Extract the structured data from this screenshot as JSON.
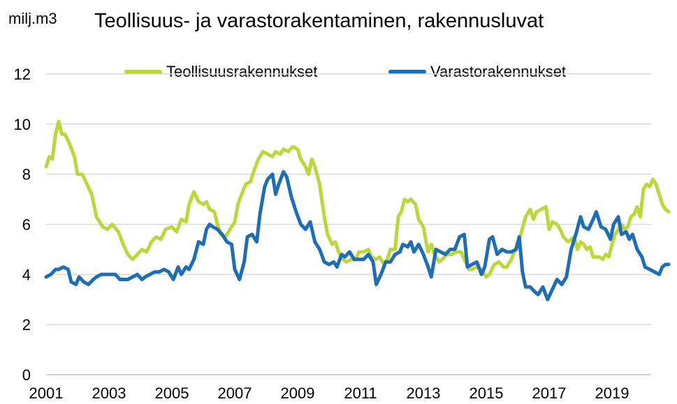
{
  "chart_data": {
    "type": "line",
    "title": "Teollisuus- ja varastorakentaminen, rakennusluvat",
    "ylabel": "milj.m3",
    "ylim": [
      0,
      12
    ],
    "yticks": [
      0,
      2,
      4,
      6,
      8,
      10,
      12
    ],
    "xlim": [
      2001,
      2020.4
    ],
    "xticks": [
      2001,
      2003,
      2005,
      2007,
      2009,
      2011,
      2013,
      2015,
      2017,
      2019
    ],
    "grid": true,
    "legend_position": "top",
    "series": [
      {
        "name": "Teollisuusrakennukset",
        "color": "#bcd63e",
        "points": [
          [
            2001.0,
            8.3
          ],
          [
            2001.1,
            8.7
          ],
          [
            2001.2,
            8.6
          ],
          [
            2001.3,
            9.6
          ],
          [
            2001.4,
            10.1
          ],
          [
            2001.5,
            9.6
          ],
          [
            2001.6,
            9.6
          ],
          [
            2001.75,
            9.2
          ],
          [
            2001.9,
            8.7
          ],
          [
            2002.0,
            8.0
          ],
          [
            2002.15,
            8.0
          ],
          [
            2002.3,
            7.6
          ],
          [
            2002.45,
            7.2
          ],
          [
            2002.6,
            6.3
          ],
          [
            2002.8,
            5.9
          ],
          [
            2002.95,
            5.8
          ],
          [
            2003.1,
            6.0
          ],
          [
            2003.3,
            5.7
          ],
          [
            2003.45,
            5.2
          ],
          [
            2003.6,
            4.8
          ],
          [
            2003.75,
            4.6
          ],
          [
            2003.9,
            4.8
          ],
          [
            2004.05,
            5.0
          ],
          [
            2004.2,
            4.9
          ],
          [
            2004.35,
            5.3
          ],
          [
            2004.5,
            5.5
          ],
          [
            2004.65,
            5.4
          ],
          [
            2004.8,
            5.8
          ],
          [
            2005.0,
            5.9
          ],
          [
            2005.15,
            5.7
          ],
          [
            2005.3,
            6.2
          ],
          [
            2005.45,
            6.1
          ],
          [
            2005.55,
            6.8
          ],
          [
            2005.7,
            7.3
          ],
          [
            2005.85,
            6.9
          ],
          [
            2006.0,
            6.8
          ],
          [
            2006.1,
            6.9
          ],
          [
            2006.2,
            6.6
          ],
          [
            2006.35,
            6.5
          ],
          [
            2006.45,
            6.0
          ],
          [
            2006.55,
            5.6
          ],
          [
            2006.7,
            5.5
          ],
          [
            2006.85,
            5.8
          ],
          [
            2007.0,
            6.1
          ],
          [
            2007.1,
            6.8
          ],
          [
            2007.25,
            7.3
          ],
          [
            2007.35,
            7.6
          ],
          [
            2007.5,
            7.7
          ],
          [
            2007.6,
            8.1
          ],
          [
            2007.75,
            8.6
          ],
          [
            2007.9,
            8.9
          ],
          [
            2008.05,
            8.8
          ],
          [
            2008.2,
            8.7
          ],
          [
            2008.3,
            8.9
          ],
          [
            2008.45,
            8.8
          ],
          [
            2008.55,
            9.0
          ],
          [
            2008.7,
            8.9
          ],
          [
            2008.85,
            9.1
          ],
          [
            2009.0,
            9.0
          ],
          [
            2009.1,
            8.6
          ],
          [
            2009.25,
            8.3
          ],
          [
            2009.35,
            8.0
          ],
          [
            2009.45,
            8.6
          ],
          [
            2009.55,
            8.3
          ],
          [
            2009.7,
            7.6
          ],
          [
            2009.85,
            6.3
          ],
          [
            2009.95,
            5.6
          ],
          [
            2010.1,
            5.2
          ],
          [
            2010.2,
            5.3
          ],
          [
            2010.3,
            4.9
          ],
          [
            2010.45,
            4.6
          ],
          [
            2010.55,
            4.5
          ],
          [
            2010.7,
            4.6
          ],
          [
            2010.85,
            4.6
          ],
          [
            2010.95,
            4.9
          ],
          [
            2011.1,
            4.9
          ],
          [
            2011.25,
            5.0
          ],
          [
            2011.35,
            4.7
          ],
          [
            2011.5,
            4.6
          ],
          [
            2011.6,
            4.7
          ],
          [
            2011.75,
            4.4
          ],
          [
            2011.85,
            4.6
          ],
          [
            2011.95,
            5.0
          ],
          [
            2012.1,
            5.0
          ],
          [
            2012.2,
            6.3
          ],
          [
            2012.3,
            6.5
          ],
          [
            2012.4,
            7.0
          ],
          [
            2012.5,
            6.9
          ],
          [
            2012.6,
            7.0
          ],
          [
            2012.75,
            6.8
          ],
          [
            2012.85,
            6.2
          ],
          [
            2013.0,
            5.9
          ],
          [
            2013.1,
            5.2
          ],
          [
            2013.15,
            4.9
          ],
          [
            2013.25,
            5.2
          ],
          [
            2013.35,
            4.8
          ],
          [
            2013.5,
            4.5
          ],
          [
            2013.6,
            4.6
          ],
          [
            2013.75,
            4.8
          ],
          [
            2013.9,
            4.8
          ],
          [
            2014.05,
            4.9
          ],
          [
            2014.2,
            4.9
          ],
          [
            2014.3,
            4.6
          ],
          [
            2014.45,
            4.2
          ],
          [
            2014.55,
            4.2
          ],
          [
            2014.7,
            4.3
          ],
          [
            2014.85,
            4.2
          ],
          [
            2015.0,
            3.9
          ],
          [
            2015.1,
            4.0
          ],
          [
            2015.25,
            4.4
          ],
          [
            2015.4,
            4.5
          ],
          [
            2015.55,
            4.3
          ],
          [
            2015.65,
            4.3
          ],
          [
            2015.8,
            4.6
          ],
          [
            2015.95,
            5.1
          ],
          [
            2016.1,
            5.6
          ],
          [
            2016.25,
            6.3
          ],
          [
            2016.4,
            6.6
          ],
          [
            2016.5,
            6.2
          ],
          [
            2016.6,
            6.5
          ],
          [
            2016.75,
            6.6
          ],
          [
            2016.9,
            6.7
          ],
          [
            2017.0,
            5.8
          ],
          [
            2017.1,
            6.1
          ],
          [
            2017.25,
            6.0
          ],
          [
            2017.35,
            5.8
          ],
          [
            2017.45,
            5.5
          ],
          [
            2017.6,
            5.3
          ],
          [
            2017.7,
            5.4
          ],
          [
            2017.8,
            5.5
          ],
          [
            2017.9,
            5.0
          ],
          [
            2018.0,
            5.3
          ],
          [
            2018.1,
            5.2
          ],
          [
            2018.2,
            5.0
          ],
          [
            2018.3,
            5.1
          ],
          [
            2018.4,
            4.7
          ],
          [
            2018.5,
            4.7
          ],
          [
            2018.6,
            4.7
          ],
          [
            2018.7,
            4.6
          ],
          [
            2018.8,
            4.8
          ],
          [
            2018.9,
            4.7
          ],
          [
            2019.0,
            5.2
          ],
          [
            2019.1,
            5.6
          ],
          [
            2019.2,
            5.8
          ],
          [
            2019.3,
            6.0
          ],
          [
            2019.4,
            5.8
          ],
          [
            2019.5,
            5.9
          ],
          [
            2019.6,
            6.3
          ],
          [
            2019.7,
            6.4
          ],
          [
            2019.8,
            6.7
          ],
          [
            2019.9,
            6.3
          ],
          [
            2020.0,
            7.4
          ],
          [
            2020.1,
            7.6
          ],
          [
            2020.2,
            7.5
          ],
          [
            2020.3,
            7.8
          ],
          [
            2020.4,
            7.6
          ],
          [
            2020.5,
            7.2
          ],
          [
            2020.6,
            6.8
          ],
          [
            2020.7,
            6.6
          ],
          [
            2020.8,
            6.5
          ]
        ]
      },
      {
        "name": "Varastorakennukset",
        "color": "#1f6eb4",
        "points": [
          [
            2001.0,
            3.9
          ],
          [
            2001.15,
            4.0
          ],
          [
            2001.3,
            4.2
          ],
          [
            2001.4,
            4.2
          ],
          [
            2001.55,
            4.3
          ],
          [
            2001.7,
            4.2
          ],
          [
            2001.8,
            3.7
          ],
          [
            2001.95,
            3.6
          ],
          [
            2002.05,
            3.9
          ],
          [
            2002.2,
            3.7
          ],
          [
            2002.35,
            3.6
          ],
          [
            2002.5,
            3.8
          ],
          [
            2002.6,
            3.9
          ],
          [
            2002.75,
            4.0
          ],
          [
            2002.9,
            4.0
          ],
          [
            2003.05,
            4.0
          ],
          [
            2003.2,
            4.0
          ],
          [
            2003.35,
            3.8
          ],
          [
            2003.5,
            3.8
          ],
          [
            2003.6,
            3.8
          ],
          [
            2003.75,
            3.9
          ],
          [
            2003.9,
            4.0
          ],
          [
            2004.05,
            3.8
          ],
          [
            2004.15,
            3.9
          ],
          [
            2004.3,
            4.0
          ],
          [
            2004.45,
            4.1
          ],
          [
            2004.6,
            4.1
          ],
          [
            2004.75,
            4.2
          ],
          [
            2004.9,
            4.1
          ],
          [
            2005.05,
            3.8
          ],
          [
            2005.2,
            4.3
          ],
          [
            2005.3,
            4.0
          ],
          [
            2005.45,
            4.3
          ],
          [
            2005.55,
            4.2
          ],
          [
            2005.7,
            4.6
          ],
          [
            2005.85,
            5.3
          ],
          [
            2006.0,
            5.2
          ],
          [
            2006.1,
            5.8
          ],
          [
            2006.2,
            6.0
          ],
          [
            2006.3,
            5.9
          ],
          [
            2006.45,
            5.8
          ],
          [
            2006.6,
            5.6
          ],
          [
            2006.75,
            5.3
          ],
          [
            2006.9,
            5.2
          ],
          [
            2007.0,
            4.2
          ],
          [
            2007.15,
            3.8
          ],
          [
            2007.3,
            4.5
          ],
          [
            2007.4,
            5.5
          ],
          [
            2007.55,
            5.6
          ],
          [
            2007.7,
            5.3
          ],
          [
            2007.8,
            6.4
          ],
          [
            2007.95,
            7.5
          ],
          [
            2008.05,
            7.8
          ],
          [
            2008.2,
            8.0
          ],
          [
            2008.3,
            7.2
          ],
          [
            2008.4,
            7.6
          ],
          [
            2008.55,
            8.1
          ],
          [
            2008.65,
            7.9
          ],
          [
            2008.8,
            7.1
          ],
          [
            2008.95,
            6.5
          ],
          [
            2009.1,
            6.0
          ],
          [
            2009.25,
            5.8
          ],
          [
            2009.4,
            6.1
          ],
          [
            2009.55,
            5.3
          ],
          [
            2009.7,
            5.0
          ],
          [
            2009.85,
            4.5
          ],
          [
            2010.0,
            4.4
          ],
          [
            2010.15,
            4.5
          ],
          [
            2010.25,
            4.3
          ],
          [
            2010.4,
            4.8
          ],
          [
            2010.5,
            4.7
          ],
          [
            2010.65,
            4.9
          ],
          [
            2010.8,
            4.6
          ],
          [
            2010.95,
            4.6
          ],
          [
            2011.1,
            4.6
          ],
          [
            2011.25,
            4.8
          ],
          [
            2011.4,
            4.5
          ],
          [
            2011.5,
            3.6
          ],
          [
            2011.65,
            4.0
          ],
          [
            2011.8,
            4.5
          ],
          [
            2011.95,
            4.5
          ],
          [
            2012.1,
            4.8
          ],
          [
            2012.25,
            4.9
          ],
          [
            2012.35,
            5.2
          ],
          [
            2012.5,
            5.1
          ],
          [
            2012.6,
            5.3
          ],
          [
            2012.7,
            4.9
          ],
          [
            2012.85,
            5.2
          ],
          [
            2013.0,
            4.8
          ],
          [
            2013.15,
            4.3
          ],
          [
            2013.25,
            3.9
          ],
          [
            2013.4,
            5.0
          ],
          [
            2013.55,
            4.9
          ],
          [
            2013.7,
            4.8
          ],
          [
            2013.85,
            5.0
          ],
          [
            2014.0,
            5.0
          ],
          [
            2014.15,
            5.5
          ],
          [
            2014.3,
            5.6
          ],
          [
            2014.4,
            4.3
          ],
          [
            2014.55,
            4.4
          ],
          [
            2014.7,
            4.5
          ],
          [
            2014.85,
            4.0
          ],
          [
            2014.95,
            4.3
          ],
          [
            2015.1,
            5.4
          ],
          [
            2015.2,
            5.5
          ],
          [
            2015.35,
            4.8
          ],
          [
            2015.5,
            5.0
          ],
          [
            2015.65,
            4.9
          ],
          [
            2015.8,
            4.9
          ],
          [
            2015.95,
            5.0
          ],
          [
            2016.05,
            5.5
          ],
          [
            2016.15,
            4.1
          ],
          [
            2016.25,
            3.5
          ],
          [
            2016.4,
            3.5
          ],
          [
            2016.55,
            3.3
          ],
          [
            2016.65,
            3.2
          ],
          [
            2016.8,
            3.5
          ],
          [
            2016.95,
            3.0
          ],
          [
            2017.1,
            3.4
          ],
          [
            2017.25,
            3.8
          ],
          [
            2017.4,
            3.6
          ],
          [
            2017.55,
            3.9
          ],
          [
            2017.7,
            5.0
          ],
          [
            2017.85,
            5.6
          ],
          [
            2018.0,
            6.3
          ],
          [
            2018.1,
            5.9
          ],
          [
            2018.25,
            5.8
          ],
          [
            2018.4,
            6.2
          ],
          [
            2018.5,
            6.5
          ],
          [
            2018.65,
            5.9
          ],
          [
            2018.8,
            5.8
          ],
          [
            2018.95,
            5.4
          ],
          [
            2019.05,
            6.0
          ],
          [
            2019.2,
            6.3
          ],
          [
            2019.3,
            5.6
          ],
          [
            2019.45,
            5.7
          ],
          [
            2019.55,
            5.4
          ],
          [
            2019.65,
            5.6
          ],
          [
            2019.8,
            5.0
          ],
          [
            2019.95,
            4.7
          ],
          [
            2020.05,
            4.3
          ],
          [
            2020.2,
            4.2
          ],
          [
            2020.35,
            4.1
          ],
          [
            2020.5,
            4.0
          ],
          [
            2020.6,
            4.3
          ],
          [
            2020.7,
            4.4
          ],
          [
            2020.8,
            4.4
          ]
        ]
      }
    ]
  }
}
